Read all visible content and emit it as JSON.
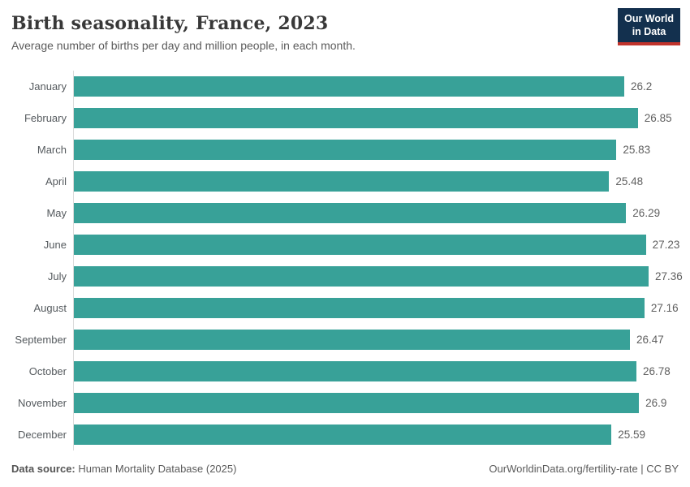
{
  "header": {
    "title": "Birth seasonality, France, 2023",
    "subtitle": "Average number of births per day and million people, in each month.",
    "logo": {
      "line1": "Our World",
      "line2": "in Data",
      "bg_color": "#13304e",
      "accent_color": "#c1342c"
    }
  },
  "chart_data": {
    "type": "bar",
    "orientation": "horizontal",
    "title": "Birth seasonality, France, 2023",
    "subtitle": "Average number of births per day and million people, in each month.",
    "categories": [
      "January",
      "February",
      "March",
      "April",
      "May",
      "June",
      "July",
      "August",
      "September",
      "October",
      "November",
      "December"
    ],
    "values": [
      26.2,
      26.85,
      25.83,
      25.48,
      26.29,
      27.23,
      27.36,
      27.16,
      26.47,
      26.78,
      26.9,
      25.59
    ],
    "value_labels": [
      "26.2",
      "26.85",
      "25.83",
      "25.48",
      "26.29",
      "27.23",
      "27.36",
      "27.16",
      "26.47",
      "26.78",
      "26.9",
      "25.59"
    ],
    "xlim": [
      0,
      27.36
    ],
    "bar_color": "#38a198",
    "axis_line_color": "#dadada",
    "grid": false,
    "legend": false
  },
  "footer": {
    "source_label": "Data source:",
    "source_value": " Human Mortality Database (2025)",
    "credit": "OurWorldinData.org/fertility-rate | CC BY"
  }
}
